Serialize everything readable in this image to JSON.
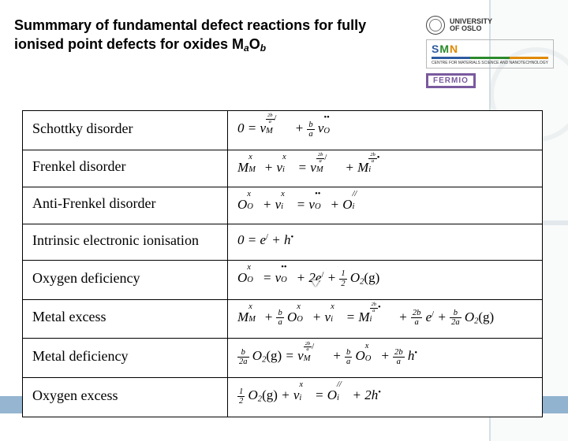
{
  "title_html": "Summmary of fundamental defect reactions for fully ionised point defects for oxides M<sub>a</sub>O<sub>b</sub>",
  "logos": {
    "uio_line1": "UNIVERSITY",
    "uio_line2": "OF OSLO",
    "smn_text": "SMN",
    "smn_sub": "CENTRE FOR MATERIALS SCIENCE AND NANOTECHNOLOGY",
    "fermio": "FERMIO"
  },
  "table": {
    "columns": [
      "name",
      "equation"
    ],
    "rows": [
      {
        "name": "Schottky disorder",
        "eqn_html": "0 = <i>v</i><span class='subsup wider'><span class='s-sup'><span class='frac'><span class='n'>2b</span><span class='d'>a</span></span><span class='prime'>/</span></span><span class='s-sub'>M</span></span> + <span class='frac'><span class='n'>b</span><span class='d'>a</span></span> <i>v</i><span class='subsup'><span class='s-sup dot'>••</span><span class='s-sub'>O</span></span>"
      },
      {
        "name": "Frenkel disorder",
        "eqn_html": "<i>M</i><span class='subsup'><span class='s-sup'>x</span><span class='s-sub'>M</span></span> + <i>v</i><span class='subsup'><span class='s-sup'>x</span><span class='s-sub'>i</span></span> = <i>v</i><span class='subsup wider'><span class='s-sup'><span class='frac'><span class='n'>2b</span><span class='d'>a</span></span><span class='prime'>/</span></span><span class='s-sub'>M</span></span> + <i>M</i><span class='subsup wider'><span class='s-sup'><span class='frac'><span class='n'>2b</span><span class='d'>a</span></span><span class='dot'>•</span></span><span class='s-sub'>i</span></span>"
      },
      {
        "name": "Anti-Frenkel disorder",
        "eqn_html": "<i>O</i><span class='subsup'><span class='s-sup'>x</span><span class='s-sub'>O</span></span> + <i>v</i><span class='subsup'><span class='s-sup'>x</span><span class='s-sub'>i</span></span> = <i>v</i><span class='subsup'><span class='s-sup dot'>••</span><span class='s-sub'>O</span></span> + <i>O</i><span class='subsup'><span class='s-sup prime'>//</span><span class='s-sub'>i</span></span>"
      },
      {
        "name": "Intrinsic electronic ionisation",
        "eqn_html": "0 = <i>e</i><sup class='prime'>/</sup> + <i>h</i><sup class='dot'>•</sup>"
      },
      {
        "name": "Oxygen deficiency",
        "eqn_html": "<i>O</i><span class='subsup'><span class='s-sup'>x</span><span class='s-sub'>O</span></span> = <i>v</i><span class='subsup'><span class='s-sup dot'>••</span><span class='s-sub'>O</span></span> + 2<i>e</i><sup class='prime'>/</sup> + <span class='frac'><span class='n'>1</span><span class='d'>2</span></span> <i>O</i><sub>2</sub><span class='up'>(g)</span>"
      },
      {
        "name": "Metal excess",
        "eqn_html": "<i>M</i><span class='subsup'><span class='s-sup'>x</span><span class='s-sub'>M</span></span> + <span class='frac'><span class='n'>b</span><span class='d'>a</span></span> <i>O</i><span class='subsup'><span class='s-sup'>x</span><span class='s-sub'>O</span></span> + <i>v</i><span class='subsup'><span class='s-sup'>x</span><span class='s-sub'>i</span></span> = <i>M</i><span class='subsup wider'><span class='s-sup'><span class='frac'><span class='n'>2b</span><span class='d'>a</span></span><span class='dot'>•</span></span><span class='s-sub'>i</span></span> + <span class='frac'><span class='n'>2b</span><span class='d'>a</span></span> <i>e</i><sup class='prime'>/</sup> + <span class='frac'><span class='n'>b</span><span class='d'>2a</span></span> <i>O</i><sub>2</sub><span class='up'>(g)</span>"
      },
      {
        "name": "Metal deficiency",
        "eqn_html": "<span class='frac'><span class='n'>b</span><span class='d'>2a</span></span> <i>O</i><sub>2</sub><span class='up'>(g)</span> = <i>v</i><span class='subsup wider'><span class='s-sup'><span class='frac'><span class='n'>2b</span><span class='d'>a</span></span><span class='prime'>/</span></span><span class='s-sub'>M</span></span> + <span class='frac'><span class='n'>b</span><span class='d'>a</span></span> <i>O</i><span class='subsup'><span class='s-sup'>x</span><span class='s-sub'>O</span></span> + <span class='frac'><span class='n'>2b</span><span class='d'>a</span></span> <i>h</i><sup class='dot'>•</sup>"
      },
      {
        "name": "Oxygen excess",
        "eqn_html": "<span class='frac'><span class='n'>1</span><span class='d'>2</span></span> <i>O</i><sub>2</sub><span class='up'>(g)</span> + <i>v</i><span class='subsup'><span class='s-sup'>x</span><span class='s-sub'>i</span></span> = <i>O</i><span class='subsup'><span class='s-sup prime'>//</span><span class='s-sub'>i</span></span> + 2<i>h</i><sup class='dot'>•</sup>"
      }
    ]
  },
  "colors": {
    "border": "#000000",
    "accent_blue": "#2b6ca3",
    "smn_blue": "#2e5aa0",
    "smn_green": "#2b8a2b",
    "smn_orange": "#e08a00",
    "fermio_purple": "#7a5a9e",
    "bg": "#ffffff"
  }
}
